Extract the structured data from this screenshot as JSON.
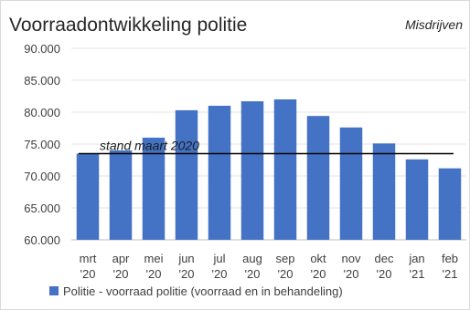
{
  "chart_data": {
    "type": "bar",
    "title": "Voorraadontwikkeling politie",
    "subtitle": "Misdrijven",
    "categories": [
      [
        "mrt",
        "'20"
      ],
      [
        "apr",
        "'20"
      ],
      [
        "mei",
        "'20"
      ],
      [
        "jun",
        "'20"
      ],
      [
        "jul",
        "'20"
      ],
      [
        "aug",
        "'20"
      ],
      [
        "sep",
        "'20"
      ],
      [
        "okt",
        "'20"
      ],
      [
        "nov",
        "'20"
      ],
      [
        "dec",
        "'20"
      ],
      [
        "jan",
        "'21"
      ],
      [
        "feb",
        "'21"
      ]
    ],
    "series": [
      {
        "name": "Politie - voorraad politie (voorraad en in behandeling)",
        "values": [
          73500,
          74000,
          76000,
          80300,
          81000,
          81700,
          82000,
          79400,
          77600,
          75100,
          72600,
          71200
        ],
        "color": "#4472C4"
      }
    ],
    "reference_line": {
      "label": "stand maart 2020",
      "value": 73500,
      "color": "#000000"
    },
    "ylim": [
      60000,
      90000
    ],
    "yticks": [
      60000,
      65000,
      70000,
      75000,
      80000,
      85000,
      90000
    ],
    "ytick_labels": [
      "60.000",
      "65.000",
      "70.000",
      "75.000",
      "80.000",
      "85.000",
      "90.000"
    ],
    "grid": "horizontal",
    "legend_position": "bottom"
  }
}
